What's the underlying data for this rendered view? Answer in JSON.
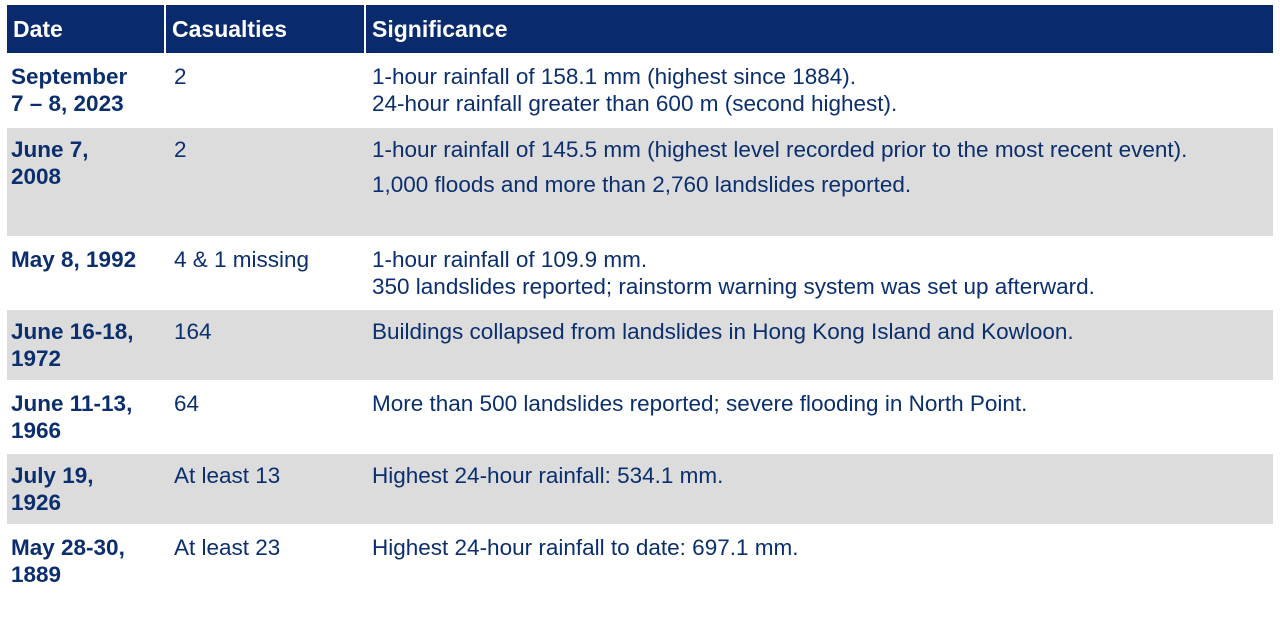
{
  "headers": {
    "date": "Date",
    "casualties": "Casualties",
    "significance": "Significance"
  },
  "rows": [
    {
      "date": [
        "September",
        "7 – 8, 2023"
      ],
      "casualties": "2",
      "significance": [
        "1-hour rainfall of 158.1 mm (highest since 1884).",
        "24-hour rainfall greater than 600 m (second highest)."
      ]
    },
    {
      "date": [
        "June 7,",
        "2008"
      ],
      "casualties": "2",
      "significance": [
        "1-hour rainfall of 145.5 mm (highest level recorded prior to the most recent event).",
        "1,000 floods and more than 2,760 landslides reported."
      ]
    },
    {
      "date": [
        "May 8, 1992",
        ""
      ],
      "casualties": "4 & 1 missing",
      "significance": [
        "1-hour rainfall of 109.9 mm.",
        "350 landslides reported; rainstorm warning system was set up afterward."
      ]
    },
    {
      "date": [
        "June 16-18,",
        "1972"
      ],
      "casualties": "164",
      "significance": [
        "Buildings collapsed from landslides in Hong Kong Island and Kowloon."
      ]
    },
    {
      "date": [
        "June 11-13,",
        "1966"
      ],
      "casualties": "64",
      "significance": [
        "More than 500 landslides reported; severe flooding in North Point."
      ]
    },
    {
      "date": [
        "July 19,",
        "1926"
      ],
      "casualties": "At least 13",
      "significance": [
        "Highest 24-hour rainfall: 534.1 mm."
      ]
    },
    {
      "date": [
        "May 28-30,",
        "1889"
      ],
      "casualties": "At least 23",
      "significance": [
        "Highest 24-hour rainfall to date: 697.1 mm."
      ]
    }
  ],
  "colors": {
    "header_bg": "#0a2a6e",
    "text": "#0b2f6e",
    "shade": "#dcdcdc"
  }
}
